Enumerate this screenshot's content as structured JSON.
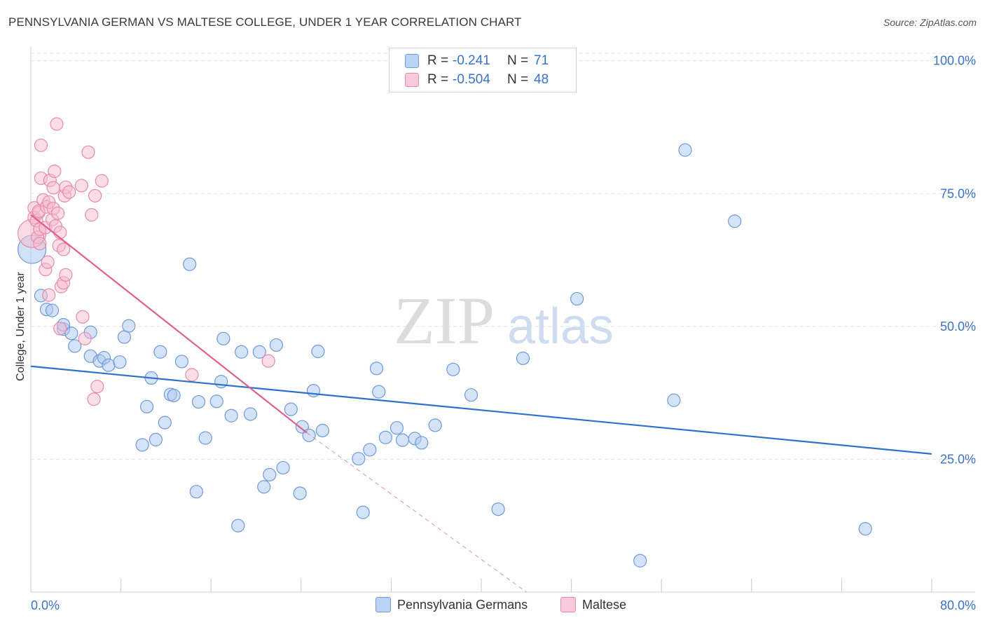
{
  "title": "PENNSYLVANIA GERMAN VS MALTESE COLLEGE, UNDER 1 YEAR CORRELATION CHART",
  "source": "Source: ZipAtlas.com",
  "watermark": {
    "zip": "ZIP",
    "atlas": "atlas"
  },
  "legend": {
    "series1": {
      "r_label": "R =",
      "r_value": "-0.241",
      "n_label": "N =",
      "n_value": "71"
    },
    "series2": {
      "r_label": "R =",
      "r_value": "-0.504",
      "n_label": "N =",
      "n_value": "48"
    }
  },
  "colors": {
    "blue_fill": "#aac8f0",
    "blue_stroke": "#6f9ad8",
    "blue_line": "#2f72cc",
    "pink_fill": "#f6bcd0",
    "pink_stroke": "#e68aab",
    "pink_line": "#e06090",
    "tick_label": "#3a72c8",
    "grid": "#e2e2e2"
  },
  "chart_data": {
    "type": "scatter",
    "title": "PENNSYLVANIA GERMAN VS MALTESE COLLEGE, UNDER 1 YEAR CORRELATION CHART",
    "xlabel": "",
    "ylabel": "College, Under 1 year",
    "xlim": [
      0,
      80
    ],
    "ylim": [
      0,
      103
    ],
    "x_tick_labels": [
      "0.0%",
      "80.0%"
    ],
    "y_ticks": [
      25,
      50,
      75,
      100
    ],
    "y_tick_labels": [
      "25.0%",
      "50.0%",
      "75.0%",
      "100.0%"
    ],
    "series": [
      {
        "name": "Pennsylvania Germans",
        "color": "#aac8f0",
        "trend": {
          "x0": 0,
          "y0": 42.5,
          "x1": 80,
          "y1": 26
        },
        "points": [
          [
            0.1,
            64.5,
            "large"
          ],
          [
            0.9,
            55.8
          ],
          [
            1.4,
            53.2
          ],
          [
            1.9,
            53.0
          ],
          [
            2.9,
            49.5
          ],
          [
            2.9,
            50.3
          ],
          [
            3.6,
            48.7
          ],
          [
            3.9,
            46.3
          ],
          [
            5.3,
            48.9
          ],
          [
            5.3,
            44.4
          ],
          [
            6.1,
            43.5
          ],
          [
            6.5,
            44.1
          ],
          [
            6.9,
            42.7
          ],
          [
            7.9,
            43.3
          ],
          [
            8.3,
            48.0
          ],
          [
            8.7,
            50.1
          ],
          [
            9.9,
            27.7
          ],
          [
            10.3,
            34.9
          ],
          [
            10.7,
            40.3
          ],
          [
            11.1,
            28.7
          ],
          [
            11.5,
            45.2
          ],
          [
            11.9,
            31.9
          ],
          [
            12.4,
            37.2
          ],
          [
            12.7,
            37.0
          ],
          [
            13.4,
            43.4
          ],
          [
            14.1,
            61.7
          ],
          [
            14.7,
            18.9
          ],
          [
            14.9,
            35.8
          ],
          [
            15.5,
            29.0
          ],
          [
            16.5,
            35.9
          ],
          [
            16.9,
            39.6
          ],
          [
            17.1,
            47.7
          ],
          [
            17.8,
            33.2
          ],
          [
            18.4,
            12.5
          ],
          [
            18.7,
            45.2
          ],
          [
            19.5,
            33.5
          ],
          [
            20.3,
            45.2
          ],
          [
            20.7,
            19.8
          ],
          [
            21.2,
            22.1
          ],
          [
            21.8,
            46.5
          ],
          [
            22.4,
            23.4
          ],
          [
            23.1,
            34.4
          ],
          [
            23.9,
            18.6
          ],
          [
            24.1,
            31.1
          ],
          [
            24.7,
            29.5
          ],
          [
            25.1,
            37.9
          ],
          [
            25.5,
            45.3
          ],
          [
            25.9,
            30.4
          ],
          [
            29.1,
            25.1
          ],
          [
            29.5,
            15.0
          ],
          [
            30.1,
            26.8
          ],
          [
            30.7,
            42.1
          ],
          [
            30.9,
            37.7
          ],
          [
            31.5,
            29.1
          ],
          [
            32.5,
            30.9
          ],
          [
            33.0,
            28.6
          ],
          [
            34.1,
            28.9
          ],
          [
            34.7,
            28.1
          ],
          [
            35.9,
            31.4
          ],
          [
            37.5,
            41.9
          ],
          [
            39.1,
            37.1
          ],
          [
            41.5,
            15.6
          ],
          [
            43.7,
            44.0
          ],
          [
            48.5,
            55.2
          ],
          [
            54.1,
            5.9
          ],
          [
            57.1,
            36.1
          ],
          [
            58.1,
            83.2
          ],
          [
            62.5,
            69.8
          ],
          [
            74.1,
            11.9
          ]
        ]
      },
      {
        "name": "Maltese",
        "color": "#f6bcd0",
        "trend": {
          "x0": 0,
          "y0": 71,
          "x1": 24.5,
          "y1": 30,
          "dash_x1": 44,
          "dash_y1": 0
        },
        "points": [
          [
            0.1,
            67.5,
            "large"
          ],
          [
            0.3,
            72.3
          ],
          [
            0.3,
            70.5
          ],
          [
            0.5,
            69.9
          ],
          [
            0.6,
            66.8
          ],
          [
            0.7,
            71.4
          ],
          [
            0.7,
            71.7
          ],
          [
            0.8,
            65.6
          ],
          [
            0.8,
            68.3
          ],
          [
            0.9,
            84.1
          ],
          [
            0.9,
            77.9
          ],
          [
            1.1,
            73.8
          ],
          [
            1.3,
            68.6
          ],
          [
            1.3,
            60.7
          ],
          [
            1.4,
            72.5
          ],
          [
            1.5,
            62.1
          ],
          [
            1.6,
            55.9
          ],
          [
            1.6,
            73.4
          ],
          [
            1.7,
            77.5
          ],
          [
            1.9,
            70.1
          ],
          [
            2.0,
            76.1
          ],
          [
            2.0,
            72.2
          ],
          [
            2.1,
            79.2
          ],
          [
            2.2,
            68.9
          ],
          [
            2.3,
            88.1
          ],
          [
            2.4,
            71.3
          ],
          [
            2.5,
            65.2
          ],
          [
            2.6,
            49.6
          ],
          [
            2.6,
            67.7
          ],
          [
            2.7,
            57.5
          ],
          [
            2.9,
            58.2
          ],
          [
            2.9,
            64.5
          ],
          [
            3.0,
            74.6
          ],
          [
            3.1,
            76.2
          ],
          [
            3.1,
            59.7
          ],
          [
            3.4,
            75.3
          ],
          [
            4.5,
            76.5
          ],
          [
            4.6,
            51.8
          ],
          [
            4.8,
            47.7
          ],
          [
            5.1,
            82.8
          ],
          [
            5.4,
            71.0
          ],
          [
            5.6,
            36.3
          ],
          [
            5.7,
            74.6
          ],
          [
            5.9,
            38.7
          ],
          [
            6.3,
            77.4
          ],
          [
            14.3,
            40.9
          ],
          [
            21.1,
            43.5
          ]
        ]
      }
    ]
  },
  "bottom_legend": [
    {
      "label": "Pennsylvania Germans"
    },
    {
      "label": "Maltese"
    }
  ]
}
